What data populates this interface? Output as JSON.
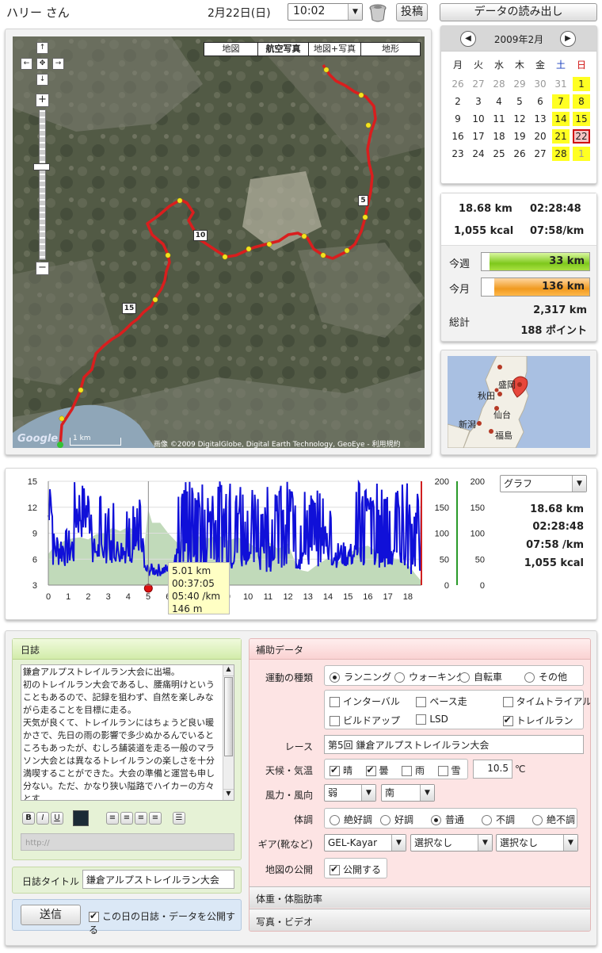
{
  "header": {
    "user": "ハリー さん",
    "date": "2月22日(日)",
    "time": "10:02",
    "post_label": "投稿",
    "load_label": "データの読み出し"
  },
  "map": {
    "types": [
      "地図",
      "航空写真",
      "地図+写真",
      "地形"
    ],
    "active_type": "航空写真",
    "km_markers": [
      "5",
      "10",
      "15"
    ],
    "scale": "1 km",
    "google": "Google",
    "copyright": "画像 ©2009 DigitalGlobe, Digital Earth Technology, GeoEye - 利用規約",
    "colors": {
      "route": "#dd1f1f",
      "km_dot": "#f0e020",
      "satellite_bg": "#4b5440"
    }
  },
  "calendar": {
    "title": "2009年2月",
    "weekdays": [
      "月",
      "火",
      "水",
      "木",
      "金",
      "土",
      "日"
    ],
    "weeks": [
      [
        "26",
        "27",
        "28",
        "29",
        "30",
        "31",
        "1"
      ],
      [
        "2",
        "3",
        "4",
        "5",
        "6",
        "7",
        "8"
      ],
      [
        "9",
        "10",
        "11",
        "12",
        "13",
        "14",
        "15"
      ],
      [
        "16",
        "17",
        "18",
        "19",
        "20",
        "21",
        "22"
      ],
      [
        "23",
        "24",
        "25",
        "26",
        "27",
        "28",
        "1"
      ]
    ],
    "highlighted": [
      "0-6",
      "1-5",
      "1-6",
      "2-5",
      "2-6",
      "3-5",
      "3-6",
      "4-5",
      "4-6"
    ],
    "other_month": [
      "0-0",
      "0-1",
      "0-2",
      "0-3",
      "0-4",
      "0-5",
      "4-6"
    ],
    "selected": "3-6"
  },
  "stats": {
    "distance": "18.68 km",
    "duration": "02:28:48",
    "calories": "1,055 kcal",
    "pace": "07:58/km",
    "week_label": "今週",
    "week_value": "33 km",
    "week_fill": 0.93,
    "month_label": "今月",
    "month_value": "136 km",
    "month_fill": 0.88,
    "total_label": "総計",
    "total_km": "2,317 km",
    "points": "188 ポイント"
  },
  "minimap": {
    "cities": [
      "盛岡",
      "秋田",
      "仙台",
      "新潟",
      "福島"
    ]
  },
  "graph": {
    "select_label": "グラフ",
    "distance": "18.68 km",
    "duration": "02:28:48",
    "pace": "07:58 /km",
    "calories": "1,055 kcal",
    "tooltip": [
      "5.01 km",
      "00:37:05",
      "05:40 /km",
      "146 m"
    ],
    "left_ticks": [
      "15",
      "12",
      "9",
      "6",
      "3"
    ],
    "right_ticks": [
      "200",
      "150",
      "100",
      "50",
      "0"
    ],
    "right2_ticks": [
      "200",
      "150",
      "100",
      "50",
      "0"
    ],
    "x_ticks": [
      "0",
      "1",
      "2",
      "3",
      "4",
      "5",
      "6",
      "7",
      "8",
      "9",
      "10",
      "11",
      "12",
      "13",
      "14",
      "15",
      "16",
      "17",
      "18"
    ]
  },
  "diary": {
    "header": "日誌",
    "text": "鎌倉アルプストレイルラン大会に出場。\n初のトレイルラン大会であるし、腰痛明けということもあるので、記録を狙わず、自然を楽しみながら走ることを目標に走る。\n天気が良くて、トレイルランにはちょうど良い暖かさで、先日の雨の影響で多少ぬかるんでいるところもあったが、むしろ舗装道を走る一般のマラソン大会とは異なるトレイルランの楽しさを十分満喫することができた。大会の準備と運営も申し分ない。ただ、かなり狭い隘路でハイカーの方々とす",
    "format_buttons": [
      "B",
      "I",
      "U"
    ],
    "url_placeholder": "http://",
    "title_label": "日誌タイトル",
    "title_value": "鎌倉アルプストレイルラン大会",
    "send_label": "送信",
    "publish_label": "この日の日誌・データを公開する"
  },
  "aux": {
    "header": "補助データ",
    "exercise_label": "運動の種類",
    "exercise_options": [
      "ランニング",
      "ウォーキング",
      "自転車",
      "その他"
    ],
    "exercise_selected": 0,
    "run_types": [
      "インターバル",
      "ペース走",
      "タイムトライアル",
      "ビルドアップ",
      "LSD",
      "トレイルラン"
    ],
    "run_types_checked": [
      5
    ],
    "race_label": "レース",
    "race_value": "第5回 鎌倉アルプストレイルラン大会",
    "weather_label": "天候・気温",
    "weather_options": [
      "晴",
      "曇",
      "雨",
      "雪"
    ],
    "weather_checked": [
      0,
      1
    ],
    "temperature": "10.5",
    "temp_unit": "℃",
    "wind_label": "風力・風向",
    "wind_strength": "弱",
    "wind_direction": "南",
    "condition_label": "体調",
    "condition_options": [
      "絶好調",
      "好調",
      "普通",
      "不調",
      "絶不調"
    ],
    "condition_selected": 2,
    "gear_label": "ギア(靴など)",
    "gear_values": [
      "GEL-Kayar",
      "選択なし",
      "選択なし"
    ],
    "map_public_label": "地図の公開",
    "map_public_value": "公開する",
    "body_header": "体重・体脂肪率",
    "photo_header": "写真・ビデオ"
  }
}
